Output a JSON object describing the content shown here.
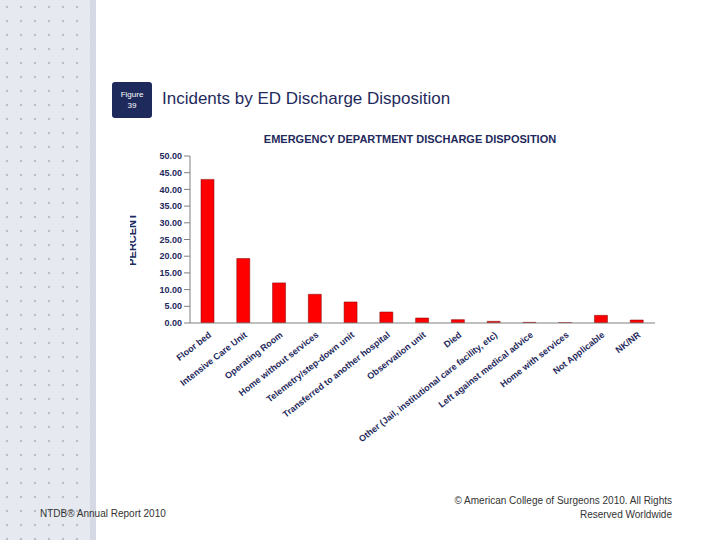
{
  "slide": {
    "figure_label": [
      "Figure",
      "39"
    ],
    "title": "Incidents by ED Discharge Disposition",
    "footer_left": "NTDB® Annual Report 2010",
    "footer_right": "© American College of Surgeons 2010.  All Rights Reserved Worldwide"
  },
  "chart_data": {
    "type": "bar",
    "title": "EMERGENCY DEPARTMENT DISCHARGE DISPOSITION",
    "y_label": "PERCENT",
    "categories": [
      "Floor bed",
      "Intensive Care Unit",
      "Operating Room",
      "Home without services",
      "Telemetry/step-down unit",
      "Transferred to another hospital",
      "Observation unit",
      "Died",
      "Other (Jail, institutional care facility, etc)",
      "Left against medical advice",
      "Home with services",
      "Not Applicable",
      "NK/NR"
    ],
    "values": [
      43.0,
      19.3,
      12.0,
      8.6,
      6.3,
      3.3,
      1.5,
      1.0,
      0.5,
      0.2,
      0.1,
      2.3,
      0.9
    ],
    "color": "#ff0000",
    "ylim": [
      0,
      50
    ],
    "yticks": [
      {
        "value": 0,
        "label": "0.00"
      },
      {
        "value": 5,
        "label": "5.00"
      },
      {
        "value": 10,
        "label": "10.00"
      },
      {
        "value": 15,
        "label": "15.00"
      },
      {
        "value": 20,
        "label": "20.00"
      },
      {
        "value": 25,
        "label": "25.00"
      },
      {
        "value": 30,
        "label": "30.00"
      },
      {
        "value": 35,
        "label": "35.00"
      },
      {
        "value": 40,
        "label": "40.00"
      },
      {
        "value": 45,
        "label": "45.00"
      },
      {
        "value": 50,
        "label": "50.00"
      }
    ],
    "grid": false
  }
}
